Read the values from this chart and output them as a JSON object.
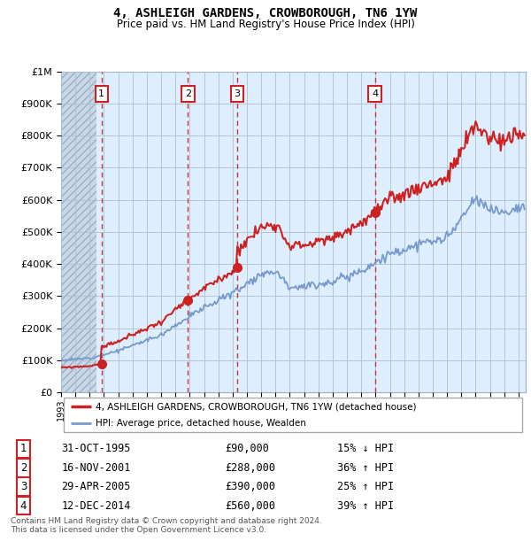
{
  "title": "4, ASHLEIGH GARDENS, CROWBOROUGH, TN6 1YW",
  "subtitle": "Price paid vs. HM Land Registry's House Price Index (HPI)",
  "sale_dates_num": [
    1995.83,
    2001.88,
    2005.33,
    2014.95
  ],
  "sale_prices": [
    90000,
    288000,
    390000,
    560000
  ],
  "sale_labels": [
    "1",
    "2",
    "3",
    "4"
  ],
  "sale_hpi_text": [
    "15% ↓ HPI",
    "36% ↑ HPI",
    "25% ↑ HPI",
    "39% ↑ HPI"
  ],
  "sale_date_text": [
    "31-OCT-1995",
    "16-NOV-2001",
    "29-APR-2005",
    "12-DEC-2014"
  ],
  "sale_price_text": [
    "£90,000",
    "£288,000",
    "£390,000",
    "£560,000"
  ],
  "hpi_line_color": "#7799cc",
  "price_line_color": "#cc2222",
  "dot_color": "#cc2222",
  "vline_color": "#cc3333",
  "background_plot": "#ddeeff",
  "background_hatch_color": "#c8d8e8",
  "grid_color": "#b0bfcf",
  "ylim": [
    0,
    1000000
  ],
  "xlim_start": 1993.0,
  "xlim_end": 2025.5,
  "hatch_end": 1995.5,
  "legend_box_color": "#cc2222",
  "ytick_labels": [
    "£0",
    "£100K",
    "£200K",
    "£300K",
    "£400K",
    "£500K",
    "£600K",
    "£700K",
    "£800K",
    "£900K",
    "£1M"
  ],
  "ytick_values": [
    0,
    100000,
    200000,
    300000,
    400000,
    500000,
    600000,
    700000,
    800000,
    900000,
    1000000
  ],
  "footer_text": "Contains HM Land Registry data © Crown copyright and database right 2024.\nThis data is licensed under the Open Government Licence v3.0."
}
